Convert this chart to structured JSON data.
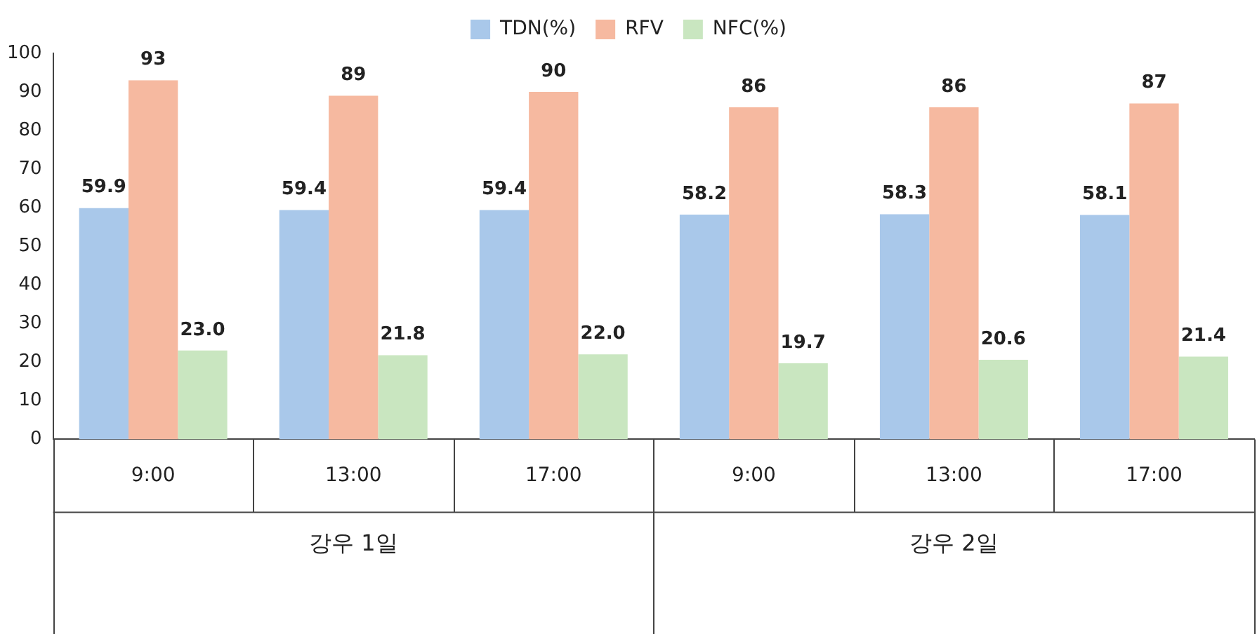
{
  "chart_data": {
    "type": "bar",
    "categories": [
      "9:00",
      "13:00",
      "17:00",
      "9:00",
      "13:00",
      "17:00"
    ],
    "series": [
      {
        "name": "TDN(%)",
        "color": "#a9c8ea",
        "values": [
          59.9,
          59.4,
          59.4,
          58.2,
          58.3,
          58.1
        ],
        "value_labels": [
          "59.9",
          "59.4",
          "59.4",
          "58.2",
          "58.3",
          "58.1"
        ]
      },
      {
        "name": "RFV",
        "color": "#f6b9a0",
        "values": [
          93,
          89,
          90,
          86,
          86,
          87
        ],
        "value_labels": [
          "93",
          "89",
          "90",
          "86",
          "86",
          "87"
        ]
      },
      {
        "name": "NFC(%)",
        "color": "#c9e6c0",
        "values": [
          23.0,
          21.8,
          22.0,
          19.7,
          20.6,
          21.4
        ],
        "value_labels": [
          "23.0",
          "21.8",
          "22.0",
          "19.7",
          "20.6",
          "21.4"
        ]
      }
    ],
    "ylim": [
      0,
      100
    ],
    "yticks": [
      0,
      10,
      20,
      30,
      40,
      50,
      60,
      70,
      80,
      90,
      100
    ],
    "grid": false,
    "legend": "top",
    "annotations": [
      "강우 1일",
      "강우 2일"
    ]
  }
}
